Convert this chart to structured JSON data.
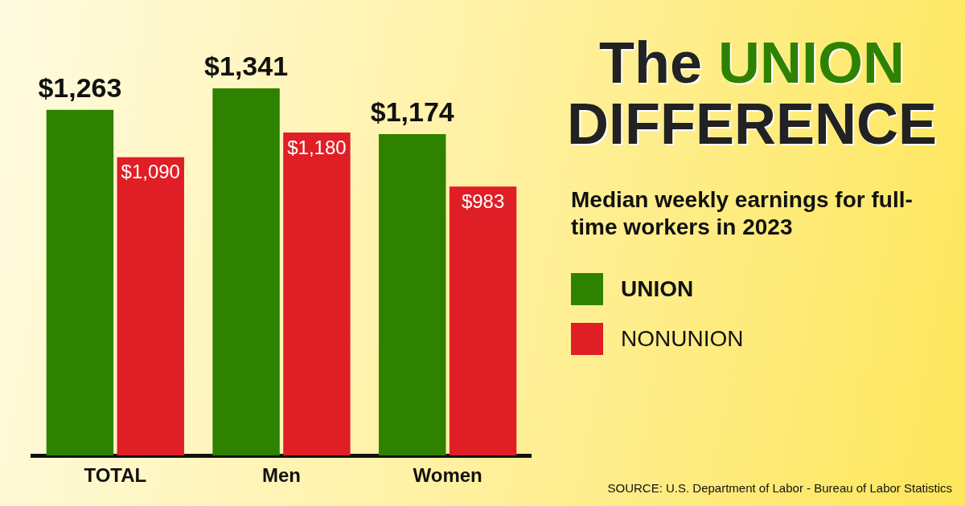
{
  "chart_data": {
    "type": "bar",
    "title": "The UNION DIFFERENCE",
    "subtitle": "Median weekly earnings for full-time workers in 2023",
    "categories": [
      "TOTAL",
      "Men",
      "Women"
    ],
    "series": [
      {
        "name": "UNION",
        "color": "#2e8200",
        "values": [
          1263,
          1341,
          1174
        ],
        "value_labels": [
          "$1,263",
          "$1,341",
          "$1,174"
        ]
      },
      {
        "name": "NONUNION",
        "color": "#e01e26",
        "values": [
          1090,
          1180,
          983
        ],
        "value_labels": [
          "$1,090",
          "$1,180",
          "$983"
        ]
      }
    ],
    "legend": "right",
    "grid": false,
    "tick_labels": "x",
    "annotations": [
      "SOURCE: U.S. Department of Labor - Bureau of Labor Statistics"
    ]
  }
}
